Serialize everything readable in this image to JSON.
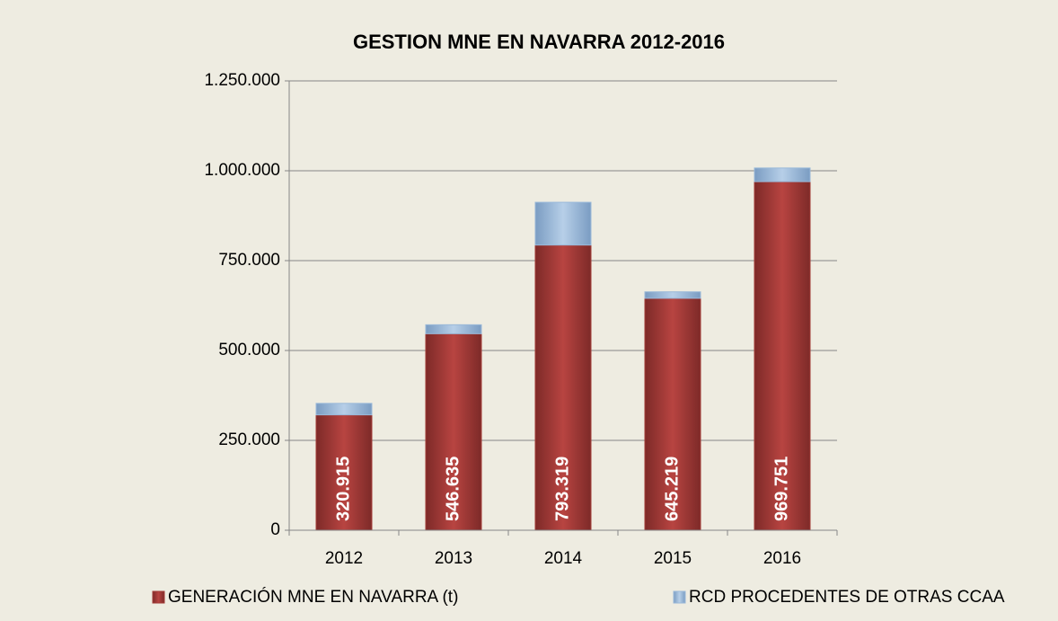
{
  "chart_data": {
    "type": "stacked_bar",
    "title": "GESTION MNE EN NAVARRA 2012-2016",
    "categories": [
      "2012",
      "2013",
      "2014",
      "2015",
      "2016"
    ],
    "series": [
      {
        "name": "GENERACIÓN MNE EN NAVARRA (t)",
        "color": "#a33b38",
        "values": [
          320915,
          546635,
          793319,
          645219,
          969751
        ],
        "value_labels": [
          "320.915",
          "546.635",
          "793.319",
          "645.219",
          "969.751"
        ]
      },
      {
        "name": "RCD PROCEDENTES DE OTRAS CCAA",
        "color": "#9ab9d9",
        "values": [
          32000,
          25000,
          119000,
          18000,
          38000
        ]
      }
    ],
    "ylim": [
      0,
      1250000
    ],
    "yticks": [
      0,
      {
        "value": 250000,
        "label": "250.000"
      },
      {
        "value": 500000,
        "label": "500.000"
      },
      {
        "value": 750000,
        "label": "750.000"
      },
      {
        "value": 1000000,
        "label": "1.000.000"
      },
      {
        "value": 1250000,
        "label": "1.250.000"
      }
    ],
    "grid": true,
    "legend": "bottom"
  }
}
